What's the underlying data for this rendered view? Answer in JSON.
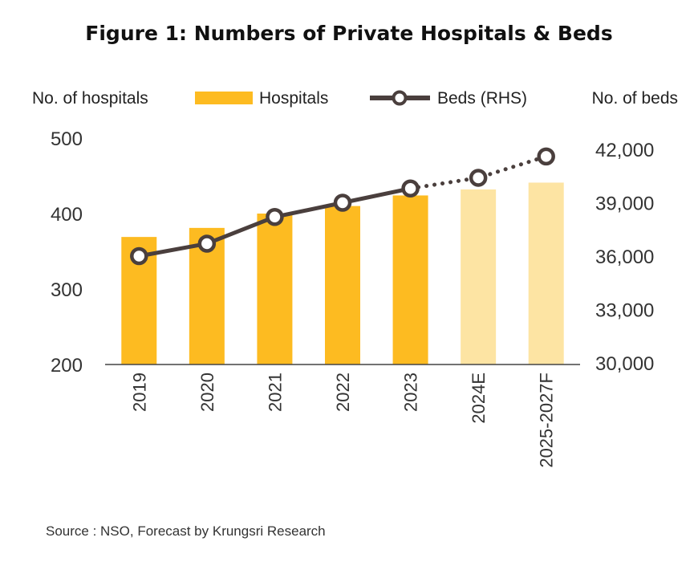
{
  "chart_data": {
    "type": "bar",
    "title": "Figure 1: Numbers of Private Hospitals & Beds",
    "categories": [
      "2019",
      "2020",
      "2021",
      "2022",
      "2023",
      "2024E",
      "2025-2027F"
    ],
    "forecast_categories": [
      "2024E",
      "2025-2027F"
    ],
    "ylabel_left": "No. of hospitals",
    "ylabel_right": "No. of beds",
    "ylim_left": [
      200,
      500
    ],
    "yticks_left": [
      "200",
      "300",
      "400",
      "500"
    ],
    "ylim_right": [
      30000,
      43000
    ],
    "yticks_right": [
      "30,000",
      "33,000",
      "36,000",
      "39,000",
      "42,000"
    ],
    "grid": false,
    "legend": "top",
    "series": [
      {
        "name": "Hospitals",
        "type": "bar",
        "axis": "left",
        "values": [
          369,
          381,
          400,
          410,
          424,
          432,
          441
        ],
        "color": "#FDBB21",
        "forecast_color": "#FDE4A3"
      },
      {
        "name": "Beds (RHS)",
        "type": "line",
        "axis": "right",
        "values": [
          36000,
          36700,
          38200,
          39000,
          39800,
          40400,
          41600
        ],
        "color": "#4A3F3D",
        "marker": "open-circle",
        "forecast_style": "dotted"
      }
    ],
    "source": "Source : NSO, Forecast by Krungsri Research"
  }
}
